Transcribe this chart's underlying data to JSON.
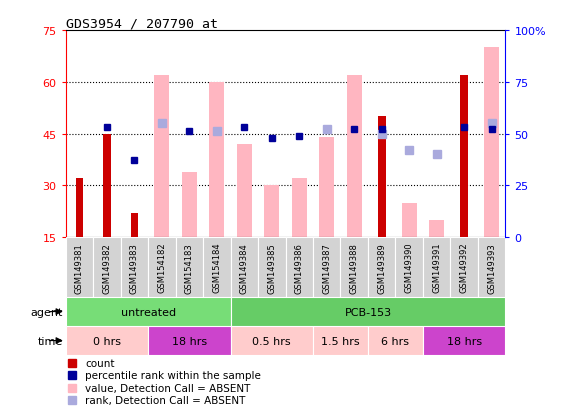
{
  "title": "GDS3954 / 207790_at",
  "samples": [
    "GSM149381",
    "GSM149382",
    "GSM149383",
    "GSM154182",
    "GSM154183",
    "GSM154184",
    "GSM149384",
    "GSM149385",
    "GSM149386",
    "GSM149387",
    "GSM149388",
    "GSM149389",
    "GSM149390",
    "GSM149391",
    "GSM149392",
    "GSM149393"
  ],
  "count_values": [
    32,
    45,
    22,
    null,
    null,
    null,
    null,
    null,
    null,
    null,
    null,
    50,
    null,
    null,
    62,
    null
  ],
  "pink_bar_heights": [
    null,
    null,
    null,
    62,
    34,
    60,
    42,
    30,
    32,
    44,
    62,
    null,
    25,
    20,
    null,
    70
  ],
  "blue_square_values": [
    null,
    53,
    37,
    null,
    51,
    null,
    53,
    48,
    49,
    null,
    52,
    52,
    null,
    null,
    53,
    52
  ],
  "lavender_square_values": [
    null,
    null,
    null,
    55,
    null,
    51,
    null,
    null,
    null,
    52,
    null,
    50,
    42,
    40,
    null,
    55
  ],
  "ylim_left": [
    15,
    75
  ],
  "ylim_right": [
    0,
    100
  ],
  "left_yticks": [
    15,
    30,
    45,
    60,
    75
  ],
  "right_yticks": [
    0,
    25,
    50,
    75,
    100
  ],
  "right_ytick_labels": [
    "0",
    "25",
    "50",
    "75",
    "100%"
  ],
  "agent_groups": [
    {
      "label": "untreated",
      "start": 0,
      "end": 6,
      "color": "#77DD77"
    },
    {
      "label": "PCB-153",
      "start": 6,
      "end": 16,
      "color": "#66CC66"
    }
  ],
  "time_groups": [
    {
      "label": "0 hrs",
      "start": 0,
      "end": 3,
      "color": "#FFCCCC"
    },
    {
      "label": "18 hrs",
      "start": 3,
      "end": 6,
      "color": "#CC44CC"
    },
    {
      "label": "0.5 hrs",
      "start": 6,
      "end": 9,
      "color": "#FFCCCC"
    },
    {
      "label": "1.5 hrs",
      "start": 9,
      "end": 11,
      "color": "#FFCCCC"
    },
    {
      "label": "6 hrs",
      "start": 11,
      "end": 13,
      "color": "#FFCCCC"
    },
    {
      "label": "18 hrs",
      "start": 13,
      "end": 16,
      "color": "#CC44CC"
    }
  ],
  "count_color": "#CC0000",
  "pink_color": "#FFB6C1",
  "blue_color": "#000099",
  "lavender_color": "#AAAADD",
  "sample_bg_color": "#D3D3D3",
  "legend_items": [
    {
      "color": "#CC0000",
      "label": "count"
    },
    {
      "color": "#000099",
      "label": "percentile rank within the sample"
    },
    {
      "color": "#FFB6C1",
      "label": "value, Detection Call = ABSENT"
    },
    {
      "color": "#AAAADD",
      "label": "rank, Detection Call = ABSENT"
    }
  ]
}
